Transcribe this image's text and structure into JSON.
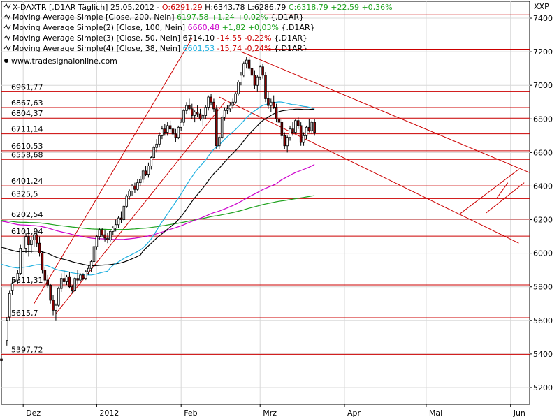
{
  "chart_data": {
    "type": "candlestick",
    "header": {
      "symbol_label": "X-DAXTR [.D1AR  Täglich]",
      "date": "25.05.2012",
      "open": "O:6291,29",
      "high": "H:6343,78",
      "low": "L:6286,79",
      "close": "C:6318,79",
      "change": "+22,59 +0,36%"
    },
    "indicators": [
      {
        "label": "Moving Average Simple [Close, 200, Nein]",
        "value": "6197,58",
        "change": "+1,24 +0,02%",
        "suffix": "{.D1AR}",
        "color": "#1fa21f",
        "period": 200
      },
      {
        "label": "Moving Average Simple(2) [Close, 100, Nein]",
        "value": "6660,48",
        "change": "+1,82 +0,03%",
        "suffix": "{.D1AR}",
        "color": "#cc00cc",
        "period": 100
      },
      {
        "label": "Moving Average Simple(3) [Close, 50, Nein]",
        "value": "6714,10",
        "change": "-14,55 -0,22%",
        "suffix": "{.D1AR}",
        "color": "#000000",
        "period": 50
      },
      {
        "label": "Moving Average Simple(4) [Close, 38, Nein]",
        "value": "6601,53",
        "change": "-15,74 -0,24%",
        "suffix": "{.D1AR}",
        "color": "#1fb0e0",
        "period": 38
      }
    ],
    "watermark": "www.tradesignalonline.com",
    "y_axis": {
      "label": "XXP",
      "min": 5100,
      "max": 7500,
      "ticks": [
        "7400",
        "7200",
        "7000",
        "6800",
        "6600",
        "6400",
        "6200",
        "6000",
        "5800",
        "5600",
        "5400",
        "5200"
      ]
    },
    "x_axis": {
      "ticks": [
        {
          "label": "Dez",
          "day": 0
        },
        {
          "label": "2012",
          "day": 27
        },
        {
          "label": "Feb",
          "day": 58
        },
        {
          "label": "Mrz",
          "day": 87
        },
        {
          "label": "Apr",
          "day": 118
        },
        {
          "label": "Mai",
          "day": 148
        },
        {
          "label": "Jun",
          "day": 179
        }
      ],
      "range": [
        -8,
        186
      ]
    },
    "levels": [
      {
        "label": "6961,77",
        "value": 6961.77
      },
      {
        "label": "6867,63",
        "value": 6867.63
      },
      {
        "label": "6804,37",
        "value": 6804.37
      },
      {
        "label": "6711,14",
        "value": 6711.14
      },
      {
        "label": "6610,53",
        "value": 6610.53
      },
      {
        "label": "6558,68",
        "value": 6558.68
      },
      {
        "label": "6401,24",
        "value": 6401.24
      },
      {
        "label": "6325,5",
        "value": 6325.5
      },
      {
        "label": "6202,54",
        "value": 6202.54
      },
      {
        "label": "6101,94",
        "value": 6101.94
      },
      {
        "label": "5811,31",
        "value": 5811.31
      },
      {
        "label": "5615,7",
        "value": 5615.7
      },
      {
        "label": "5397,72",
        "value": 5397.72
      }
    ],
    "top_levels": [
      7420,
      7215
    ],
    "candles": [
      [
        -8,
        5370,
        5380,
        5340,
        5360
      ],
      [
        -6,
        5480,
        5620,
        5450,
        5600
      ],
      [
        -5,
        5620,
        5780,
        5600,
        5760
      ],
      [
        -4,
        5780,
        5850,
        5750,
        5820
      ],
      [
        -3,
        5830,
        5860,
        5810,
        5840
      ],
      [
        -2,
        5840,
        5900,
        5820,
        5880
      ],
      [
        -1,
        5880,
        6050,
        5870,
        6030
      ],
      [
        1,
        6030,
        6120,
        6000,
        6100
      ],
      [
        2,
        6100,
        6130,
        5980,
        6050
      ],
      [
        3,
        6050,
        6100,
        6000,
        6080
      ],
      [
        4,
        6080,
        6130,
        6040,
        6110
      ],
      [
        5,
        6110,
        6120,
        6040,
        6060
      ],
      [
        6,
        6060,
        6100,
        5980,
        6000
      ],
      [
        7,
        6000,
        6010,
        5880,
        5900
      ],
      [
        8,
        5900,
        5920,
        5820,
        5840
      ],
      [
        9,
        5840,
        5870,
        5790,
        5810
      ],
      [
        10,
        5810,
        5820,
        5700,
        5720
      ],
      [
        11,
        5720,
        5750,
        5630,
        5660
      ],
      [
        12,
        5660,
        5700,
        5600,
        5690
      ],
      [
        13,
        5690,
        5800,
        5680,
        5790
      ],
      [
        14,
        5790,
        5880,
        5770,
        5850
      ],
      [
        15,
        5850,
        5900,
        5820,
        5830
      ],
      [
        16,
        5830,
        5870,
        5810,
        5860
      ],
      [
        17,
        5860,
        5890,
        5790,
        5800
      ],
      [
        18,
        5800,
        5810,
        5760,
        5780
      ],
      [
        19,
        5780,
        5860,
        5770,
        5850
      ],
      [
        20,
        5850,
        5900,
        5820,
        5840
      ],
      [
        21,
        5840,
        5880,
        5830,
        5870
      ],
      [
        22,
        5870,
        5880,
        5840,
        5850
      ],
      [
        23,
        5850,
        5900,
        5840,
        5890
      ],
      [
        24,
        5890,
        5930,
        5870,
        5910
      ],
      [
        25,
        5910,
        5960,
        5890,
        5950
      ],
      [
        26,
        5950,
        6050,
        5940,
        6040
      ],
      [
        27,
        6040,
        6110,
        6020,
        6100
      ],
      [
        28,
        6100,
        6150,
        6080,
        6140
      ],
      [
        29,
        6140,
        6150,
        6100,
        6110
      ],
      [
        30,
        6110,
        6140,
        6070,
        6090
      ],
      [
        31,
        6090,
        6120,
        6060,
        6080
      ],
      [
        32,
        6080,
        6140,
        6070,
        6130
      ],
      [
        33,
        6130,
        6160,
        6110,
        6150
      ],
      [
        34,
        6150,
        6200,
        6130,
        6170
      ],
      [
        35,
        6170,
        6220,
        6150,
        6210
      ],
      [
        36,
        6210,
        6250,
        6180,
        6200
      ],
      [
        37,
        6200,
        6290,
        6190,
        6280
      ],
      [
        38,
        6280,
        6350,
        6270,
        6340
      ],
      [
        39,
        6340,
        6380,
        6320,
        6370
      ],
      [
        40,
        6370,
        6410,
        6340,
        6400
      ],
      [
        41,
        6400,
        6420,
        6360,
        6380
      ],
      [
        42,
        6380,
        6440,
        6370,
        6420
      ],
      [
        43,
        6420,
        6460,
        6400,
        6440
      ],
      [
        44,
        6440,
        6500,
        6420,
        6490
      ],
      [
        45,
        6490,
        6520,
        6460,
        6470
      ],
      [
        46,
        6470,
        6540,
        6450,
        6520
      ],
      [
        47,
        6520,
        6580,
        6500,
        6570
      ],
      [
        48,
        6570,
        6640,
        6560,
        6630
      ],
      [
        49,
        6630,
        6680,
        6600,
        6650
      ],
      [
        50,
        6650,
        6720,
        6630,
        6700
      ],
      [
        51,
        6700,
        6760,
        6680,
        6740
      ],
      [
        52,
        6740,
        6770,
        6700,
        6720
      ],
      [
        53,
        6720,
        6780,
        6700,
        6760
      ],
      [
        54,
        6760,
        6790,
        6720,
        6740
      ],
      [
        55,
        6740,
        6780,
        6700,
        6710
      ],
      [
        56,
        6710,
        6740,
        6660,
        6690
      ],
      [
        57,
        6690,
        6760,
        6680,
        6750
      ],
      [
        58,
        6750,
        6800,
        6730,
        6780
      ],
      [
        59,
        6780,
        6860,
        6760,
        6850
      ],
      [
        60,
        6850,
        6900,
        6830,
        6880
      ],
      [
        61,
        6880,
        6920,
        6850,
        6860
      ],
      [
        62,
        6860,
        6890,
        6800,
        6820
      ],
      [
        63,
        6820,
        6850,
        6780,
        6840
      ],
      [
        64,
        6840,
        6880,
        6810,
        6830
      ],
      [
        65,
        6830,
        6860,
        6790,
        6800
      ],
      [
        66,
        6800,
        6830,
        6760,
        6820
      ],
      [
        67,
        6820,
        6880,
        6800,
        6870
      ],
      [
        68,
        6870,
        6940,
        6850,
        6930
      ],
      [
        69,
        6930,
        6950,
        6880,
        6900
      ],
      [
        70,
        6900,
        6920,
        6840,
        6860
      ],
      [
        71,
        6860,
        6880,
        6620,
        6640
      ],
      [
        72,
        6640,
        6700,
        6620,
        6690
      ],
      [
        73,
        6690,
        6820,
        6680,
        6810
      ],
      [
        74,
        6810,
        6870,
        6790,
        6850
      ],
      [
        75,
        6850,
        6880,
        6830,
        6860
      ],
      [
        76,
        6860,
        6900,
        6840,
        6880
      ],
      [
        77,
        6880,
        6920,
        6860,
        6900
      ],
      [
        78,
        6900,
        6960,
        6890,
        6950
      ],
      [
        79,
        6950,
        7030,
        6940,
        7020
      ],
      [
        80,
        7020,
        7080,
        7000,
        7060
      ],
      [
        81,
        7060,
        7140,
        7050,
        7130
      ],
      [
        82,
        7130,
        7170,
        7100,
        7150
      ],
      [
        83,
        7150,
        7170,
        7090,
        7100
      ],
      [
        84,
        7100,
        7120,
        7040,
        7060
      ],
      [
        85,
        7060,
        7090,
        6980,
        7000
      ],
      [
        86,
        7000,
        7060,
        6960,
        7050
      ],
      [
        87,
        7050,
        7120,
        7030,
        7110
      ],
      [
        88,
        7110,
        7130,
        7040,
        7060
      ],
      [
        89,
        7060,
        7080,
        6900,
        6920
      ],
      [
        90,
        6920,
        6960,
        6860,
        6880
      ],
      [
        91,
        6880,
        6920,
        6840,
        6900
      ],
      [
        92,
        6900,
        6940,
        6860,
        6870
      ],
      [
        93,
        6870,
        6890,
        6780,
        6800
      ],
      [
        94,
        6800,
        6840,
        6760,
        6780
      ],
      [
        95,
        6780,
        6800,
        6680,
        6700
      ],
      [
        96,
        6700,
        6720,
        6620,
        6640
      ],
      [
        97,
        6640,
        6700,
        6600,
        6690
      ],
      [
        98,
        6690,
        6760,
        6670,
        6740
      ],
      [
        99,
        6740,
        6780,
        6700,
        6720
      ],
      [
        100,
        6720,
        6800,
        6710,
        6790
      ],
      [
        101,
        6790,
        6810,
        6740,
        6760
      ],
      [
        102,
        6760,
        6780,
        6640,
        6660
      ],
      [
        103,
        6660,
        6720,
        6640,
        6700
      ],
      [
        104,
        6700,
        6760,
        6680,
        6750
      ],
      [
        105,
        6750,
        6800,
        6720,
        6730
      ],
      [
        106,
        6730,
        6790,
        6710,
        6780
      ],
      [
        107,
        6780,
        6800,
        6700,
        6720
      ]
    ]
  }
}
